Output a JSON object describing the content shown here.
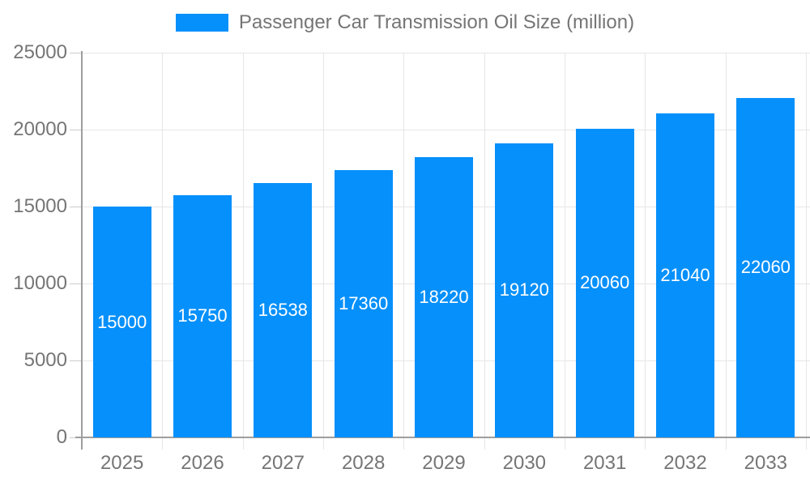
{
  "chart_data": {
    "type": "bar",
    "title": "Passenger Car Transmission Oil Size (million)",
    "categories": [
      "2025",
      "2026",
      "2027",
      "2028",
      "2029",
      "2030",
      "2031",
      "2032",
      "2033"
    ],
    "values": [
      15000,
      15750,
      16538,
      17360,
      18220,
      19120,
      20060,
      21040,
      22060
    ],
    "bar_labels": [
      "15000",
      "15750",
      "16538",
      "17360",
      "18220",
      "19120",
      "20060",
      "21040",
      "22060"
    ],
    "ylim": [
      0,
      25000
    ],
    "yticks": [
      0,
      5000,
      10000,
      15000,
      20000,
      25000
    ],
    "ytick_labels": [
      "0",
      "5000",
      "10000",
      "15000",
      "20000",
      "25000"
    ],
    "xlabel": "",
    "ylabel": "",
    "grid": true,
    "legend_position": "top",
    "colors": {
      "bar": "#0690fb",
      "bar_label_text": "#ffffff",
      "axis_text": "#757575",
      "legend_text": "#757575",
      "grid_line": "#e6e6e6",
      "axis_line": "#9e9e9e",
      "tick_line": "#cccccc",
      "background": "#ffffff"
    }
  }
}
